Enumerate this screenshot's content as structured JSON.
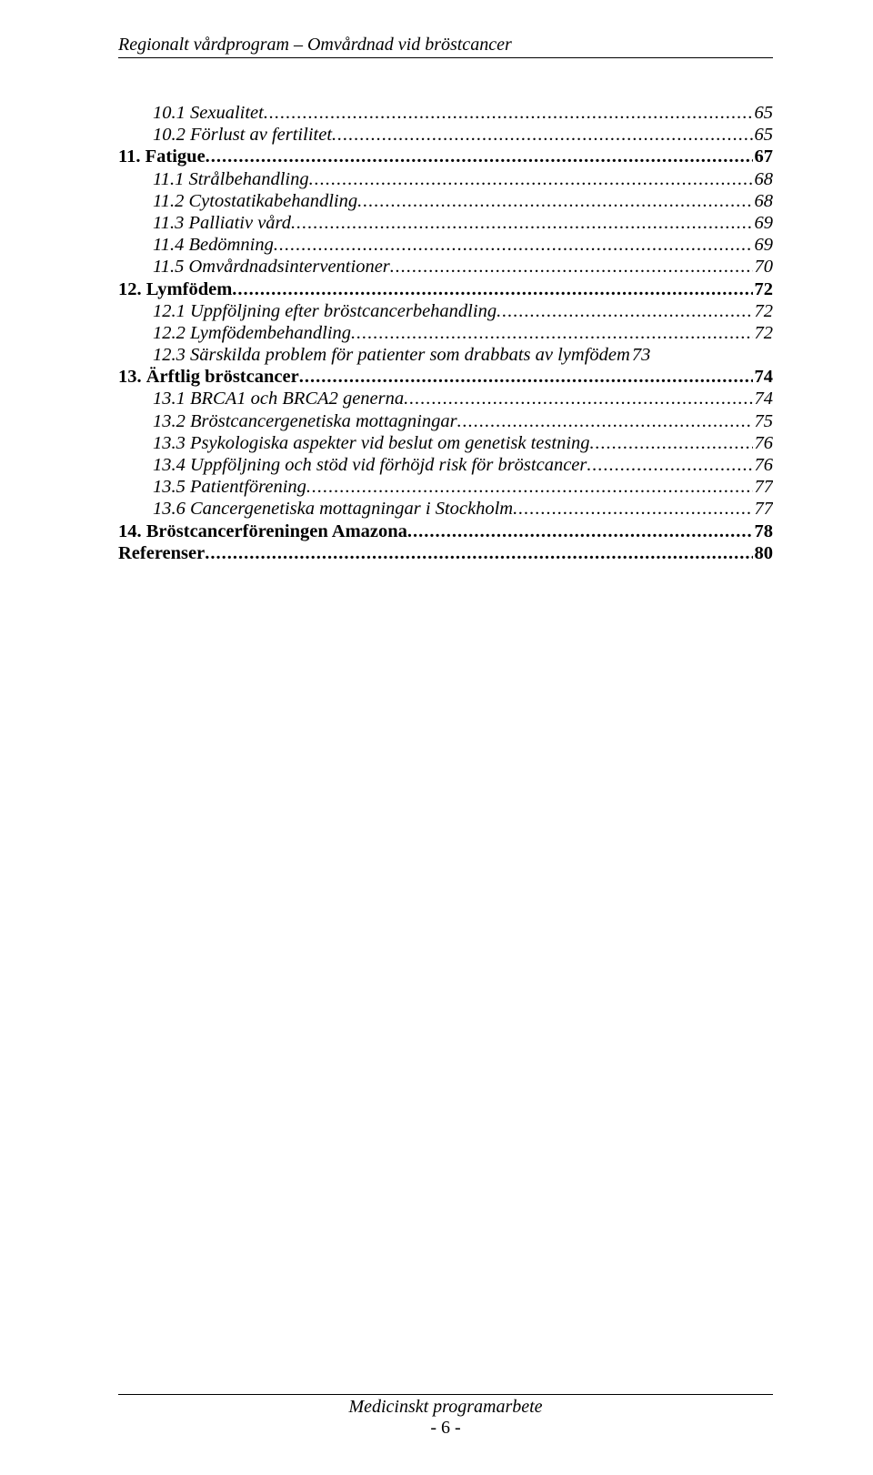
{
  "header": "Regionalt vårdprogram – Omvårdnad vid bröstcancer",
  "toc": [
    {
      "label": "10.1 Sexualitet",
      "page": "65",
      "level": 2,
      "style": "italic"
    },
    {
      "label": "10.2 Förlust av fertilitet",
      "page": "65",
      "level": 2,
      "style": "italic"
    },
    {
      "label": "11. Fatigue",
      "page": "67",
      "level": 1,
      "style": "bold"
    },
    {
      "label": "11.1 Strålbehandling",
      "page": "68",
      "level": 2,
      "style": "italic"
    },
    {
      "label": "11.2 Cytostatikabehandling",
      "page": "68",
      "level": 2,
      "style": "italic"
    },
    {
      "label": "11.3 Palliativ vård",
      "page": "69",
      "level": 2,
      "style": "italic"
    },
    {
      "label": "11.4 Bedömning",
      "page": "69",
      "level": 2,
      "style": "italic"
    },
    {
      "label": "11.5 Omvårdnadsinterventioner",
      "page": "70",
      "level": 2,
      "style": "italic"
    },
    {
      "label": "12. Lymfödem",
      "page": "72",
      "level": 1,
      "style": "bold"
    },
    {
      "label": "12.1 Uppföljning efter bröstcancerbehandling",
      "page": "72",
      "level": 2,
      "style": "italic"
    },
    {
      "label": "12.2 Lymfödembehandling",
      "page": "72",
      "level": 2,
      "style": "italic"
    },
    {
      "label": "12.3 Särskilda problem för patienter som drabbats av lymfödem",
      "page": "73",
      "level": 2,
      "style": "italic",
      "nodots": true
    },
    {
      "label": "13. Ärftlig bröstcancer",
      "page": "74",
      "level": 1,
      "style": "bold"
    },
    {
      "label": "13.1 BRCA1 och BRCA2 generna",
      "page": "74",
      "level": 2,
      "style": "italic"
    },
    {
      "label": "13.2 Bröstcancergenetiska mottagningar",
      "page": "75",
      "level": 2,
      "style": "italic"
    },
    {
      "label": "13.3 Psykologiska aspekter vid beslut om genetisk testning",
      "page": "76",
      "level": 2,
      "style": "italic"
    },
    {
      "label": "13.4 Uppföljning och stöd vid förhöjd risk för bröstcancer",
      "page": "76",
      "level": 2,
      "style": "italic"
    },
    {
      "label": "13.5 Patientförening",
      "page": "77",
      "level": 2,
      "style": "italic"
    },
    {
      "label": "13.6 Cancergenetiska mottagningar i Stockholm",
      "page": "77",
      "level": 2,
      "style": "italic"
    },
    {
      "label": "14. Bröstcancerföreningen Amazona",
      "page": "78",
      "level": 1,
      "style": "bold"
    },
    {
      "label": "Referenser",
      "page": "80",
      "level": 1,
      "style": "bold"
    }
  ],
  "footer": {
    "title": "Medicinskt programarbete",
    "pagenum": "- 6 -"
  }
}
